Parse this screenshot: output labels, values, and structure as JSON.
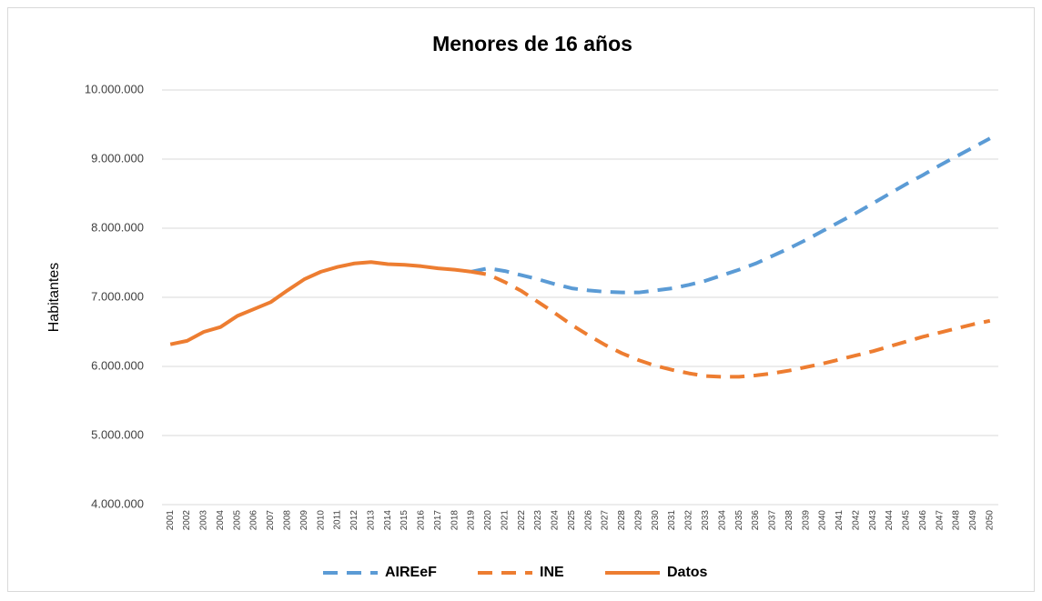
{
  "chart_data": {
    "type": "line",
    "title": "Menores de 16 años",
    "y_label": "Habitantes",
    "categories": [
      "2001",
      "2002",
      "2003",
      "2004",
      "2005",
      "2006",
      "2007",
      "2008",
      "2009",
      "2010",
      "2011",
      "2012",
      "2013",
      "2014",
      "2015",
      "2016",
      "2017",
      "2018",
      "2019",
      "2020",
      "2021",
      "2022",
      "2023",
      "2024",
      "2025",
      "2026",
      "2027",
      "2028",
      "2029",
      "2030",
      "2031",
      "2032",
      "2033",
      "2034",
      "2035",
      "2036",
      "2037",
      "2038",
      "2039",
      "2040",
      "2041",
      "2042",
      "2043",
      "2044",
      "2045",
      "2046",
      "2047",
      "2048",
      "2049",
      "2050"
    ],
    "series": [
      {
        "name": "AIREeF",
        "color": "#5b9bd5",
        "dashed": true,
        "values": [
          null,
          null,
          null,
          null,
          null,
          null,
          null,
          null,
          null,
          null,
          null,
          null,
          null,
          null,
          null,
          null,
          null,
          null,
          7370000,
          7420000,
          7380000,
          7320000,
          7260000,
          7190000,
          7130000,
          7100000,
          7080000,
          7070000,
          7070000,
          7100000,
          7130000,
          7180000,
          7240000,
          7320000,
          7400000,
          7490000,
          7600000,
          7710000,
          7830000,
          7960000,
          8090000,
          8220000,
          8360000,
          8500000,
          8640000,
          8770000,
          8910000,
          9040000,
          9170000,
          9300000
        ]
      },
      {
        "name": "INE",
        "color": "#ed7d31",
        "dashed": true,
        "values": [
          null,
          null,
          null,
          null,
          null,
          null,
          null,
          null,
          null,
          null,
          null,
          null,
          null,
          null,
          null,
          null,
          null,
          null,
          7370000,
          7330000,
          7220000,
          7090000,
          6930000,
          6770000,
          6600000,
          6450000,
          6310000,
          6190000,
          6090000,
          6010000,
          5950000,
          5900000,
          5860000,
          5850000,
          5850000,
          5870000,
          5900000,
          5940000,
          5990000,
          6040000,
          6100000,
          6160000,
          6220000,
          6290000,
          6360000,
          6430000,
          6490000,
          6550000,
          6610000,
          6660000
        ]
      },
      {
        "name": "Datos",
        "color": "#ed7d31",
        "dashed": false,
        "values": [
          6320000,
          6370000,
          6500000,
          6570000,
          6730000,
          6830000,
          6930000,
          7100000,
          7260000,
          7370000,
          7440000,
          7490000,
          7510000,
          7480000,
          7470000,
          7450000,
          7420000,
          7400000,
          7370000,
          null,
          null,
          null,
          null,
          null,
          null,
          null,
          null,
          null,
          null,
          null,
          null,
          null,
          null,
          null,
          null,
          null,
          null,
          null,
          null,
          null,
          null,
          null,
          null,
          null,
          null,
          null,
          null,
          null,
          null,
          null
        ]
      }
    ],
    "ylim": [
      4000000,
      10000000
    ],
    "yticks": [
      {
        "value": 4000000,
        "label": "4.000.000"
      },
      {
        "value": 5000000,
        "label": "5.000.000"
      },
      {
        "value": 6000000,
        "label": "6.000.000"
      },
      {
        "value": 7000000,
        "label": "7.000.000"
      },
      {
        "value": 8000000,
        "label": "8.000.000"
      },
      {
        "value": 9000000,
        "label": "9.000.000"
      },
      {
        "value": 10000000,
        "label": "10.000.000"
      }
    ],
    "grid": true,
    "legend": "bottom"
  }
}
